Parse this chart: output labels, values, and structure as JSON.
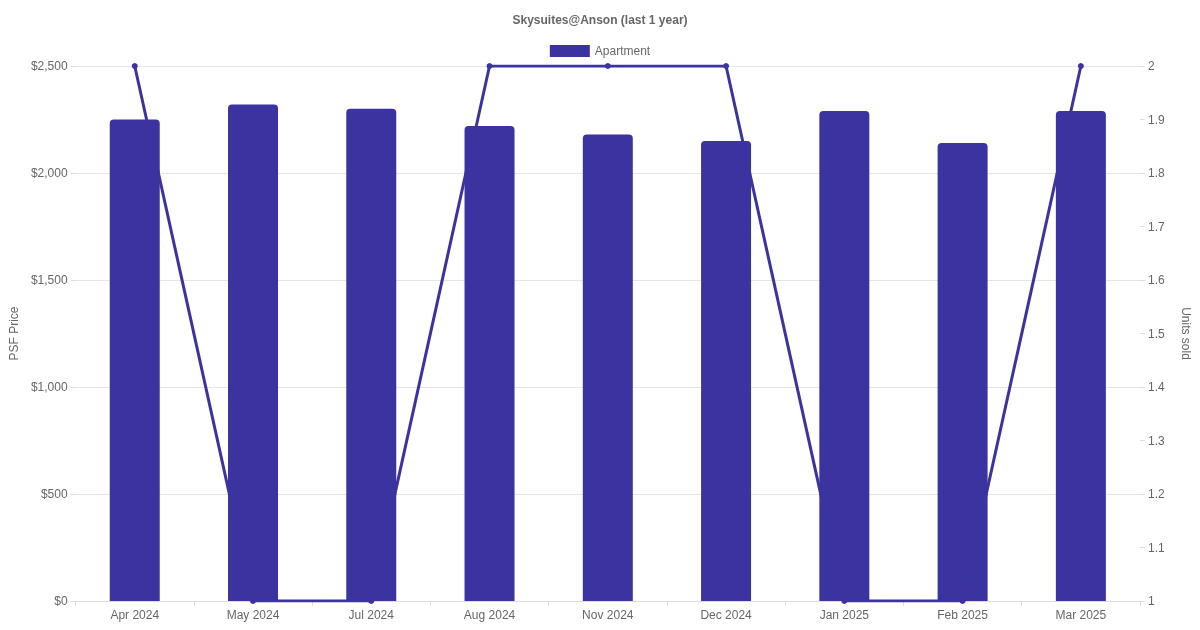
{
  "chart_data": {
    "type": "bar",
    "title": "Skysuites@Anson (last 1 year)",
    "ylabel": "PSF Price",
    "y2label": "Units sold",
    "categories": [
      "Apr 2024",
      "May 2024",
      "Jul 2024",
      "Aug 2024",
      "Nov 2024",
      "Dec 2024",
      "Jan 2025",
      "Feb 2025",
      "Mar 2025"
    ],
    "series": [
      {
        "name": "Apartment",
        "color": "#3a33a0",
        "values": [
          2250,
          2320,
          2300,
          2220,
          2180,
          2150,
          2290,
          2140,
          2290
        ]
      },
      {
        "type": "line",
        "axis": "y2",
        "color": "#3a33a0",
        "values": [
          2,
          1,
          1,
          2,
          2,
          2,
          1,
          1,
          2
        ]
      }
    ],
    "ylim": [
      0,
      2500
    ],
    "yticks": [
      {
        "value": 0,
        "label": "$0"
      },
      {
        "value": 500,
        "label": "$500"
      },
      {
        "value": 1000,
        "label": "$1,000"
      },
      {
        "value": 1500,
        "label": "$1,500"
      },
      {
        "value": 2000,
        "label": "$2,000"
      },
      {
        "value": 2500,
        "label": "$2,500"
      }
    ],
    "y2lim": [
      1,
      2
    ],
    "y2ticks": [
      1,
      1.1,
      1.2,
      1.3,
      1.4,
      1.5,
      1.6,
      1.7,
      1.8,
      1.9,
      2
    ],
    "grid": "y",
    "legend": "top",
    "marker": "circle",
    "line_style": "solid"
  }
}
